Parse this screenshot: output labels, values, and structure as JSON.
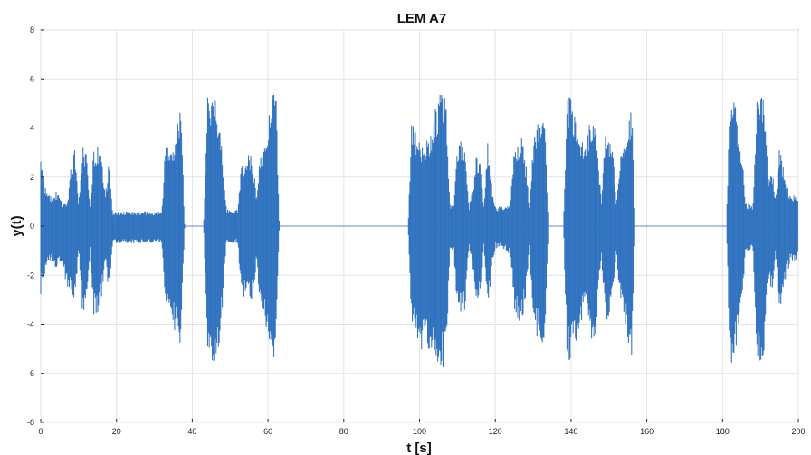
{
  "chart_data": {
    "type": "line",
    "title": "LEM A7",
    "xlabel": "t [s]",
    "ylabel": "y(t)",
    "xlim": [
      0,
      200
    ],
    "ylim": [
      -8,
      8
    ],
    "x_ticks": [
      0,
      20,
      40,
      60,
      80,
      100,
      120,
      140,
      160,
      180,
      200
    ],
    "y_ticks": [
      -8,
      -6,
      -4,
      -2,
      0,
      2,
      4,
      6,
      8
    ],
    "x_tick_labels": [
      "0",
      "20",
      "40",
      "60",
      "80",
      "100",
      "120",
      "140",
      "160",
      "180",
      "200"
    ],
    "y_tick_labels": [
      "-8",
      "-6",
      "-4",
      "-2",
      "0",
      "2",
      "4",
      "6",
      "8"
    ],
    "grid": true,
    "line_color": "#2f72bf",
    "series": [
      {
        "x": [
          0,
          1,
          2,
          3,
          4,
          5,
          6,
          7,
          8,
          9,
          10,
          11,
          12,
          13,
          14,
          15,
          16,
          17,
          18,
          19,
          20,
          21,
          22,
          23,
          24,
          25,
          26,
          27,
          28,
          29,
          30,
          31,
          32,
          33,
          34,
          35,
          36,
          37,
          38,
          39,
          40,
          41,
          42,
          43,
          44,
          45,
          46,
          47,
          48,
          49,
          50,
          51,
          52,
          53,
          54,
          55,
          56,
          57,
          58,
          59,
          60,
          61,
          62,
          63,
          64,
          65,
          66,
          67,
          68,
          69,
          70,
          71,
          72,
          73,
          74,
          75,
          76,
          77,
          78,
          79,
          80,
          81,
          82,
          83,
          84,
          85,
          86,
          87,
          88,
          89,
          90,
          91,
          92,
          93,
          94,
          95,
          96,
          97,
          98,
          99,
          100,
          101,
          102,
          103,
          104,
          105,
          106,
          107,
          108,
          109,
          110,
          111,
          112,
          113,
          114,
          115,
          116,
          117,
          118,
          119,
          120,
          121,
          122,
          123,
          124,
          125,
          126,
          127,
          128,
          129,
          130,
          131,
          132,
          133,
          134,
          135,
          136,
          137,
          138,
          139,
          140,
          141,
          142,
          143,
          144,
          145,
          146,
          147,
          148,
          149,
          150,
          151,
          152,
          153,
          154,
          155,
          156,
          157,
          158,
          159,
          160,
          161,
          162,
          163,
          164,
          165,
          166,
          167,
          168,
          169,
          170,
          171,
          172,
          173,
          174,
          175,
          176,
          177,
          178,
          179,
          180,
          181,
          182,
          183,
          184,
          185,
          186,
          187,
          188,
          189,
          190,
          191,
          192,
          193,
          194,
          195,
          196,
          197,
          198,
          199,
          200
        ],
        "y_max": [
          2.8,
          1.8,
          1.5,
          1.2,
          1.5,
          1.2,
          1.0,
          0.9,
          2.6,
          3.2,
          0.9,
          3.5,
          3.0,
          1.0,
          3.2,
          3.4,
          2.8,
          1.3,
          2.6,
          0.6,
          0.6,
          0.6,
          0.6,
          0.6,
          0.6,
          0.6,
          0.6,
          0.6,
          0.6,
          0.6,
          0.6,
          0.6,
          0.6,
          3.6,
          3.2,
          3.5,
          4.2,
          5.0,
          0,
          0,
          0,
          0,
          0,
          0,
          5.3,
          5.6,
          5.2,
          4.6,
          3.0,
          0.7,
          0.7,
          0.7,
          0.7,
          2.5,
          2.9,
          3.0,
          2.7,
          1.2,
          3.3,
          3.3,
          4.5,
          5.8,
          6.2,
          0,
          0,
          0,
          0,
          0,
          0,
          0,
          0,
          0,
          0,
          0,
          0,
          0,
          0,
          0,
          0,
          0,
          0,
          0,
          0,
          0,
          0,
          0,
          0,
          0,
          0,
          0,
          0,
          0,
          0,
          0,
          0,
          0,
          0,
          0,
          4.6,
          4.0,
          3.5,
          3.2,
          3.5,
          4.0,
          4.7,
          5.2,
          5.7,
          5.4,
          1.0,
          0.9,
          3.3,
          3.5,
          3.2,
          0.8,
          1.5,
          3.0,
          2.6,
          0.8,
          3.4,
          1.8,
          0.8,
          0.8,
          0.8,
          0.9,
          1.1,
          3.2,
          3.6,
          3.8,
          2.7,
          0.9,
          3.6,
          4.2,
          4.6,
          5.2,
          0,
          0,
          0,
          0,
          0,
          5.6,
          5.3,
          4.8,
          4.3,
          3.5,
          3.2,
          4.5,
          5.0,
          3.4,
          1.0,
          3.8,
          3.6,
          3.1,
          1.0,
          3.0,
          3.3,
          4.4,
          5.0,
          0,
          0,
          0,
          0,
          0,
          0,
          0,
          0,
          0,
          0,
          0,
          0,
          0,
          0,
          0,
          0,
          0,
          0,
          0,
          0,
          0,
          0,
          0,
          0,
          0,
          5.7,
          5.4,
          4.2,
          3.3,
          1.0,
          0.9,
          0.9,
          5.5,
          6.0,
          5.1,
          2.0,
          2.4,
          1.2,
          3.5,
          2.5,
          1.7,
          1.2,
          1.3,
          1.0,
          1.1,
          1.2
        ],
        "y_min": [
          -2.8,
          -2.0,
          -1.5,
          -1.4,
          -1.7,
          -1.5,
          -2.0,
          -2.5,
          -2.9,
          -3.1,
          -1.1,
          -3.6,
          -3.2,
          -1.1,
          -3.7,
          -3.8,
          -3.0,
          -1.4,
          -2.7,
          -0.7,
          -0.7,
          -0.7,
          -0.7,
          -0.7,
          -0.7,
          -0.7,
          -0.7,
          -0.7,
          -0.7,
          -0.7,
          -0.7,
          -0.7,
          -0.7,
          -3.7,
          -3.3,
          -4.1,
          -4.6,
          -5.0,
          0,
          0,
          0,
          0,
          0,
          0,
          -5.5,
          -5.8,
          -5.4,
          -5.0,
          -3.4,
          -0.7,
          -0.7,
          -0.7,
          -0.7,
          -2.8,
          -3.0,
          -3.1,
          -2.9,
          -1.5,
          -3.4,
          -3.6,
          -4.6,
          -5.7,
          -6.1,
          0,
          0,
          0,
          0,
          0,
          0,
          0,
          0,
          0,
          0,
          0,
          0,
          0,
          0,
          0,
          0,
          0,
          0,
          0,
          0,
          0,
          0,
          0,
          0,
          0,
          0,
          0,
          0,
          0,
          0,
          0,
          0,
          0,
          0,
          0,
          -4.3,
          -4.7,
          -5.0,
          -5.2,
          -5.1,
          -5.0,
          -5.4,
          -5.6,
          -5.8,
          -5.6,
          -1.0,
          -1.0,
          -3.5,
          -3.8,
          -3.4,
          -0.9,
          -1.6,
          -3.2,
          -2.8,
          -0.9,
          -3.6,
          -1.9,
          -0.9,
          -0.9,
          -0.9,
          -1.0,
          -1.2,
          -3.4,
          -3.9,
          -4.0,
          -3.1,
          -1.0,
          -3.8,
          -4.5,
          -5.3,
          -5.6,
          0,
          0,
          0,
          0,
          0,
          -5.7,
          -5.4,
          -4.9,
          -4.6,
          -3.8,
          -3.5,
          -4.4,
          -5.1,
          -3.6,
          -1.1,
          -3.9,
          -3.8,
          -3.3,
          -1.1,
          -3.3,
          -3.6,
          -4.8,
          -5.5,
          0,
          0,
          0,
          0,
          0,
          0,
          0,
          0,
          0,
          0,
          0,
          0,
          0,
          0,
          0,
          0,
          0,
          0,
          0,
          0,
          0,
          0,
          0,
          0,
          0,
          -5.8,
          -5.4,
          -4.5,
          -3.6,
          -1.1,
          -1.0,
          -1.0,
          -5.6,
          -6.2,
          -5.2,
          -2.2,
          -2.8,
          -1.3,
          -3.7,
          -2.8,
          -2.0,
          -1.4,
          -1.5,
          -1.2,
          -1.3,
          -1.4
        ]
      }
    ]
  }
}
